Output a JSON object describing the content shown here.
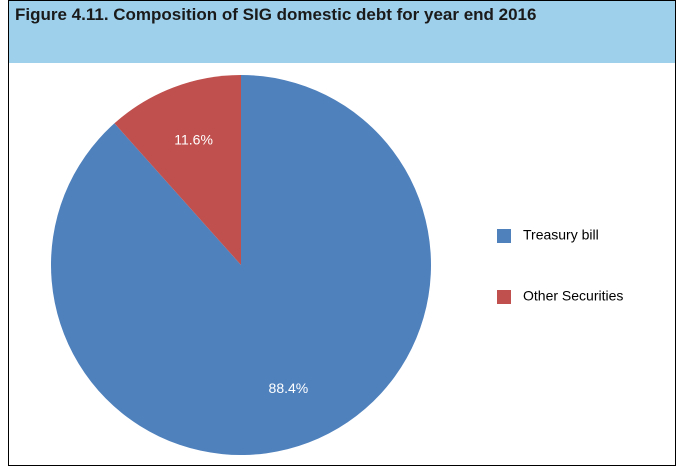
{
  "chart_data": {
    "type": "pie",
    "title": "Figure 4.11. Composition of SIG domestic debt for year end 2016",
    "categories": [
      "Treasury bill",
      "Other Securities"
    ],
    "values": [
      88.4,
      11.6
    ],
    "value_labels": [
      "88.4%",
      "11.6%"
    ],
    "colors": [
      "#4f81bd",
      "#c0504d"
    ],
    "legend": "right"
  }
}
